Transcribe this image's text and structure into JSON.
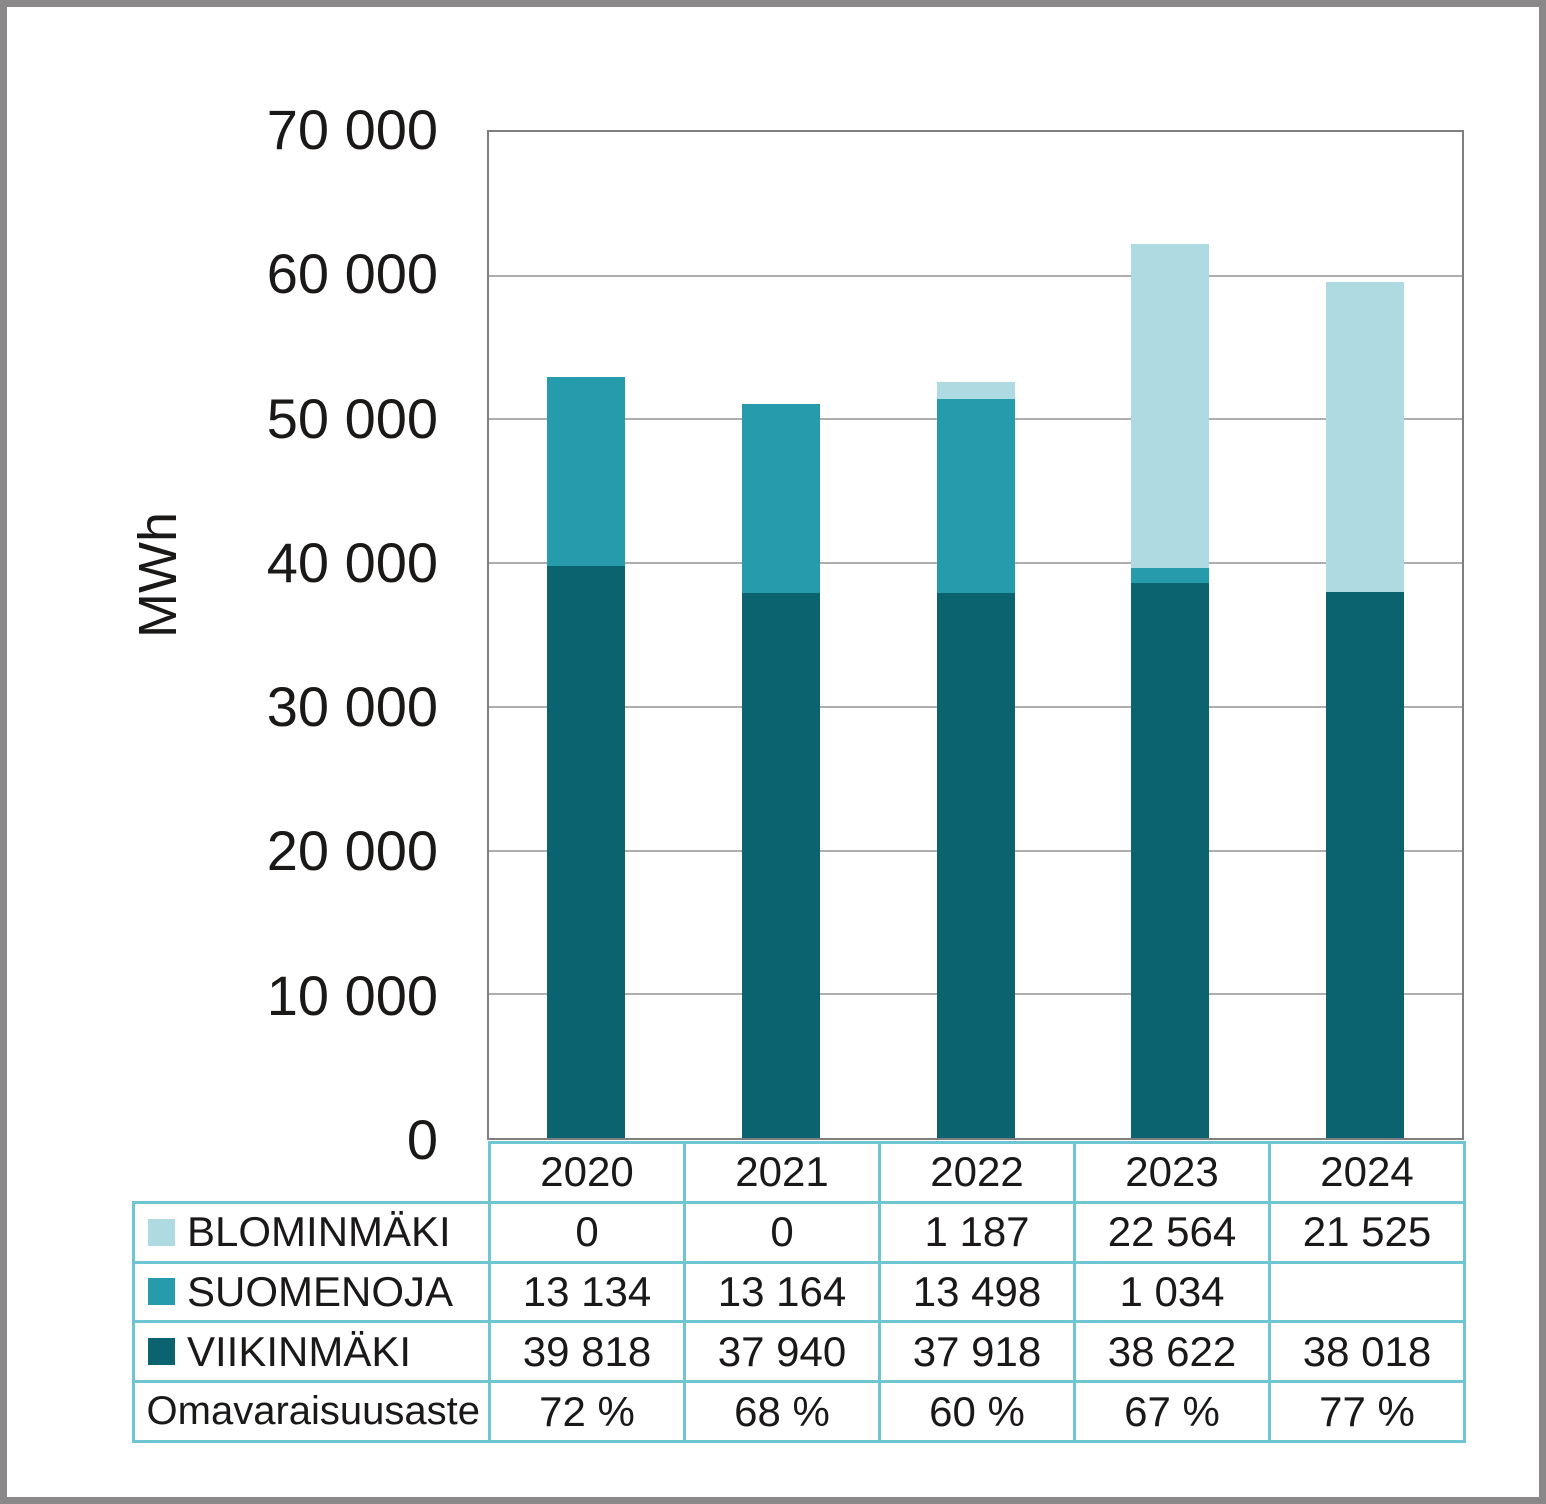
{
  "figure": {
    "background": "#ffffff",
    "frame_border_color": "#8a8889",
    "plot_border_color": "#7f7f7f",
    "gridline_color": "#aeaeae",
    "table_border_color": "#6fc6d3",
    "text_color": "#1b1818"
  },
  "chart_data": {
    "type": "bar",
    "stacked": true,
    "title": "",
    "ylabel": "MWh",
    "ylim": [
      0,
      70000
    ],
    "ytick_step": 10000,
    "ytick_labels": [
      "0",
      "10 000",
      "20 000",
      "30 000",
      "40 000",
      "50 000",
      "60 000",
      "70 000"
    ],
    "grid": true,
    "legend_position": "table-rows-left",
    "categories": [
      "2020",
      "2021",
      "2022",
      "2023",
      "2024"
    ],
    "series": [
      {
        "name": "BLOMINMÄKI",
        "color": "#aedae2",
        "values": [
          0,
          0,
          1187,
          22564,
          21525
        ]
      },
      {
        "name": "SUOMENOJA",
        "color": "#259bac",
        "values": [
          13134,
          13164,
          13498,
          1034,
          0
        ]
      },
      {
        "name": "VIIKINMÄKI",
        "color": "#0a636e",
        "values": [
          39818,
          37940,
          37918,
          38622,
          38018
        ]
      }
    ]
  },
  "table": {
    "year_header": [
      "2020",
      "2021",
      "2022",
      "2023",
      "2024"
    ],
    "rows": [
      {
        "label": "BLOMINMÄKI",
        "swatch_color": "#aedae2",
        "values": [
          "0",
          "0",
          "1 187",
          "22 564",
          "21 525"
        ]
      },
      {
        "label": "SUOMENOJA",
        "swatch_color": "#259bac",
        "values": [
          "13 134",
          "13 164",
          "13 498",
          "1 034",
          ""
        ]
      },
      {
        "label": "VIIKINMÄKI",
        "swatch_color": "#0a636e",
        "values": [
          "39 818",
          "37 940",
          "37 918",
          "38 622",
          "38 018"
        ]
      },
      {
        "label": "Omavaraisuusaste",
        "swatch_color": null,
        "values": [
          "72 %",
          "68 %",
          "60 %",
          "67 %",
          "77 %"
        ]
      }
    ]
  }
}
